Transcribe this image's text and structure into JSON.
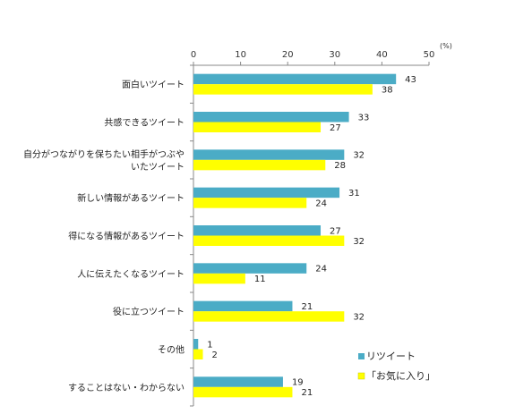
{
  "chart_data": {
    "type": "bar",
    "orientation": "horizontal",
    "unit": "(%)",
    "xlim": [
      0,
      50
    ],
    "xticks": [
      0,
      10,
      20,
      30,
      40,
      50
    ],
    "grid": false,
    "legend_position": "bottom-right",
    "categories": [
      [
        "面白いツイート"
      ],
      [
        "共感できるツイート"
      ],
      [
        "自分がつながりを保ちたい相手がつぶや",
        "いたツイート"
      ],
      [
        "新しい情報があるツイート"
      ],
      [
        "得になる情報があるツイート"
      ],
      [
        "人に伝えたくなるツイート"
      ],
      [
        "役に立つツイート"
      ],
      [
        "その他"
      ],
      [
        "することはない・わからない"
      ]
    ],
    "series": [
      {
        "name": "リツイート",
        "color": "#4BACC6",
        "values": [
          43,
          33,
          32,
          31,
          27,
          24,
          21,
          1,
          19
        ]
      },
      {
        "name": "「お気に入り」",
        "color": "#FFFF00",
        "values": [
          38,
          27,
          28,
          24,
          32,
          11,
          32,
          2,
          21
        ]
      }
    ]
  }
}
